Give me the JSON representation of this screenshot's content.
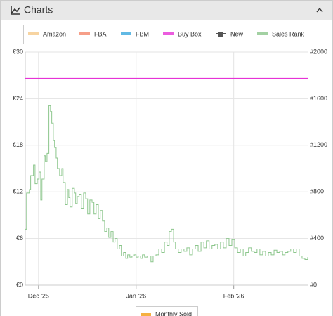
{
  "header": {
    "title": "Charts"
  },
  "chart_data": {
    "type": "line",
    "series": [
      {
        "name": "Amazon",
        "color": "#f5c98a"
      },
      {
        "name": "FBA",
        "color": "#f4876b"
      },
      {
        "name": "FBM",
        "color": "#3aa8dd"
      },
      {
        "name": "Buy Box",
        "color": "#e633d6",
        "x": [
          -4.2,
          85.5
        ],
        "values": [
          26.6,
          26.6
        ]
      },
      {
        "name": "New",
        "color": "#555555",
        "hidden": true
      },
      {
        "name": "Sales Rank",
        "color": "#8cc68c",
        "axis": "y2",
        "step": true,
        "x": [
          -4.2,
          -3.8,
          -2.9,
          -2.5,
          -1.6,
          -1.1,
          -0.4,
          0.2,
          0.7,
          1.1,
          1.8,
          2.2,
          2.7,
          3.3,
          3.8,
          4.2,
          4.7,
          5.1,
          5.6,
          6.0,
          6.7,
          7.4,
          7.8,
          8.5,
          9.2,
          9.6,
          10.0,
          10.7,
          11.4,
          11.8,
          12.3,
          12.9,
          13.6,
          14.3,
          15.0,
          15.6,
          16.3,
          17.0,
          17.6,
          18.3,
          19.0,
          19.6,
          20.3,
          21.0,
          21.7,
          22.3,
          23.0,
          23.7,
          24.3,
          25.0,
          25.7,
          26.3,
          27.0,
          27.7,
          28.3,
          29.0,
          29.7,
          30.4,
          31.0,
          31.7,
          32.4,
          33.0,
          33.7,
          34.6,
          35.7,
          36.4,
          37.3,
          38.2,
          39.1,
          40.0,
          40.8,
          41.5,
          42.2,
          42.9,
          43.5,
          44.4,
          45.3,
          46.2,
          47.1,
          48.0,
          48.9,
          49.8,
          50.7,
          51.6,
          52.5,
          53.3,
          54.2,
          55.1,
          56.0,
          56.9,
          57.8,
          58.7,
          59.6,
          60.5,
          61.4,
          62.3,
          63.2,
          64.1,
          65.0,
          65.8,
          66.7,
          67.6,
          68.5,
          69.4,
          70.3,
          71.2,
          72.1,
          73.0,
          73.9,
          74.8,
          75.7,
          76.6,
          77.5,
          78.3,
          79.2,
          80.1,
          81.0,
          81.9,
          82.8,
          83.7,
          84.6,
          85.5
        ],
        "values": [
          480,
          790,
          820,
          940,
          1030,
          870,
          910,
          970,
          730,
          910,
          1110,
          1060,
          1130,
          1540,
          1490,
          1390,
          1240,
          1180,
          1090,
          1000,
          940,
          1000,
          880,
          690,
          820,
          750,
          670,
          830,
          790,
          700,
          760,
          780,
          660,
          790,
          740,
          610,
          730,
          710,
          610,
          690,
          570,
          640,
          550,
          460,
          490,
          410,
          460,
          370,
          400,
          310,
          340,
          250,
          280,
          230,
          260,
          240,
          250,
          260,
          240,
          250,
          230,
          260,
          240,
          250,
          200,
          250,
          260,
          310,
          280,
          370,
          340,
          460,
          480,
          370,
          310,
          280,
          310,
          290,
          320,
          260,
          310,
          340,
          290,
          370,
          320,
          380,
          310,
          340,
          350,
          310,
          370,
          320,
          400,
          340,
          390,
          320,
          280,
          310,
          250,
          280,
          320,
          290,
          280,
          310,
          260,
          290,
          250,
          280,
          260,
          300,
          280,
          290,
          260,
          280,
          290,
          310,
          280,
          310,
          250,
          230,
          220,
          240
        ]
      }
    ],
    "xlim": [
      -4.2,
      85.5
    ],
    "xticks": [
      {
        "value": 0,
        "label": "Dec '25"
      },
      {
        "value": 31,
        "label": "Jan '26"
      },
      {
        "value": 62,
        "label": "Feb '26"
      }
    ],
    "ylim": [
      0,
      30
    ],
    "yticks": [
      {
        "value": 0,
        "label": "€0"
      },
      {
        "value": 6,
        "label": "€6"
      },
      {
        "value": 12,
        "label": "€12"
      },
      {
        "value": 18,
        "label": "€18"
      },
      {
        "value": 24,
        "label": "€24"
      },
      {
        "value": 30,
        "label": "€30"
      }
    ],
    "y2lim": [
      0,
      2000
    ],
    "y2ticks": [
      {
        "value": 0,
        "label": "#0"
      },
      {
        "value": 400,
        "label": "#400"
      },
      {
        "value": 800,
        "label": "#800"
      },
      {
        "value": 1200,
        "label": "#1200"
      },
      {
        "value": 1600,
        "label": "#1600"
      },
      {
        "value": 2000,
        "label": "#2000"
      }
    ],
    "grid": true,
    "secondary_legend": {
      "name": "Monthly Sold",
      "color": "#f5b041"
    }
  }
}
